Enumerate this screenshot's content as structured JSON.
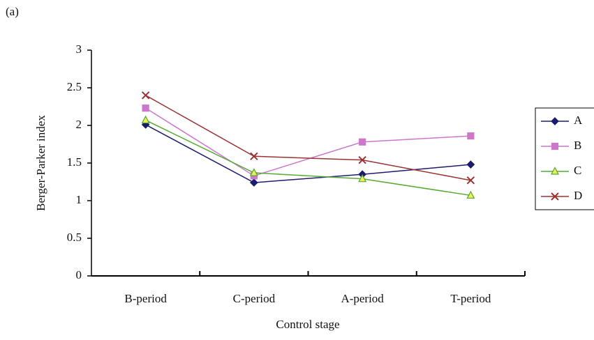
{
  "chart_data": {
    "type": "line",
    "panel_label": "(a)",
    "x_label": "Control stage",
    "y_label": "Berger-Parker index",
    "categories": [
      "B-period",
      "C-period",
      "A-period",
      "T-period"
    ],
    "series": [
      {
        "name": "A",
        "color": "#1c1c6e",
        "marker": "diamond",
        "marker_fill": "#1c1c6e",
        "values": [
          2.01,
          1.24,
          1.35,
          1.48
        ]
      },
      {
        "name": "B",
        "color": "#cc77cc",
        "marker": "square",
        "marker_fill": "#cc77cc",
        "values": [
          2.23,
          1.33,
          1.78,
          1.86
        ]
      },
      {
        "name": "C",
        "color": "#55aa33",
        "marker": "triangle",
        "marker_fill": "#eeee55",
        "values": [
          2.07,
          1.37,
          1.29,
          1.07
        ]
      },
      {
        "name": "D",
        "color": "#993333",
        "marker": "x",
        "marker_fill": "#993333",
        "values": [
          2.4,
          1.59,
          1.54,
          1.27
        ]
      }
    ],
    "ylim": [
      0,
      3
    ],
    "yticks": [
      0,
      0.5,
      1,
      1.5,
      2,
      2.5,
      3
    ],
    "grid": false,
    "legend": "right"
  }
}
